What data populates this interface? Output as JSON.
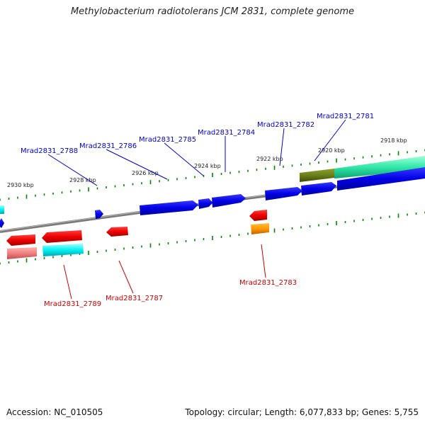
{
  "title": "Methylobacterium radiotolerans JCM 2831, complete genome",
  "footer": {
    "accession": "Accession: NC_010505",
    "stats": "Topology: circular; Length: 6,077,833 bp; Genes: 5,755"
  },
  "colors": {
    "forward_label": "#0000cc",
    "reverse_label": "#cc0000",
    "tick": "#008800",
    "backbone": "#808080"
  },
  "kbp_labels": [
    "2918 kbp",
    "2920 kbp",
    "2922 kbp",
    "2924 kbp",
    "2926 kbp",
    "2928 kbp",
    "2930 kbp"
  ],
  "gene_labels_forward": [
    "Mrad2831_2781",
    "Mrad2831_2782",
    "Mrad2831_2784",
    "Mrad2831_2785",
    "Mrad2831_2786",
    "Mrad2831_2788"
  ],
  "gene_labels_reverse": [
    "Mrad2831_2783",
    "Mrad2831_2787",
    "Mrad2831_2789"
  ]
}
